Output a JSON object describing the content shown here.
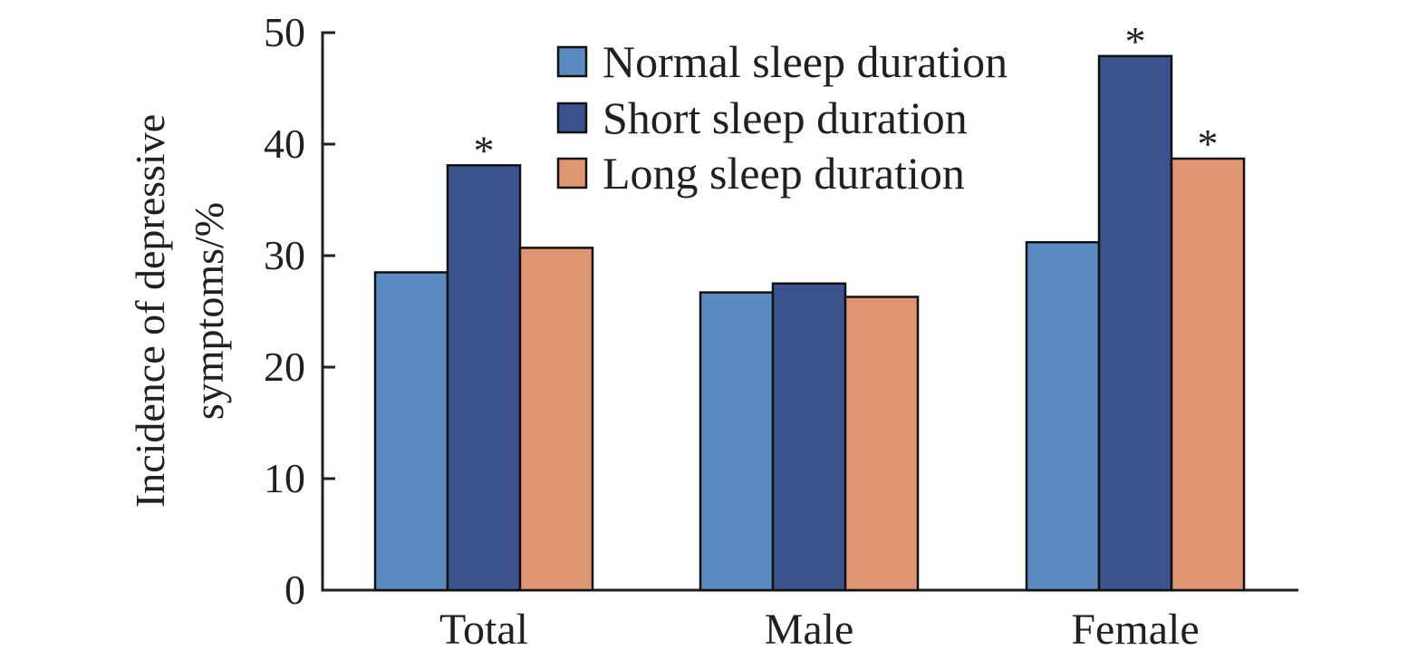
{
  "chart_data": {
    "type": "bar",
    "ylabel": [
      "Incidence of depressive",
      "symptoms/%"
    ],
    "ylim": [
      0,
      50
    ],
    "yticks": [
      0,
      10,
      20,
      30,
      40,
      50
    ],
    "categories": [
      "Total",
      "Male",
      "Female"
    ],
    "series": [
      {
        "name": "Normal sleep duration",
        "color": "#5b8bc0",
        "values": [
          28.5,
          26.7,
          31.2
        ]
      },
      {
        "name": "Short sleep duration",
        "color": "#3b528e",
        "values": [
          38.1,
          27.5,
          47.9
        ]
      },
      {
        "name": "Long sleep duration",
        "color": "#e19673",
        "values": [
          30.7,
          26.3,
          38.7
        ]
      }
    ],
    "significance_marker": "*",
    "significant": [
      [
        false,
        true,
        false
      ],
      [
        false,
        false,
        false
      ],
      [
        false,
        true,
        true
      ]
    ],
    "legend_position": "top",
    "grid": false
  }
}
